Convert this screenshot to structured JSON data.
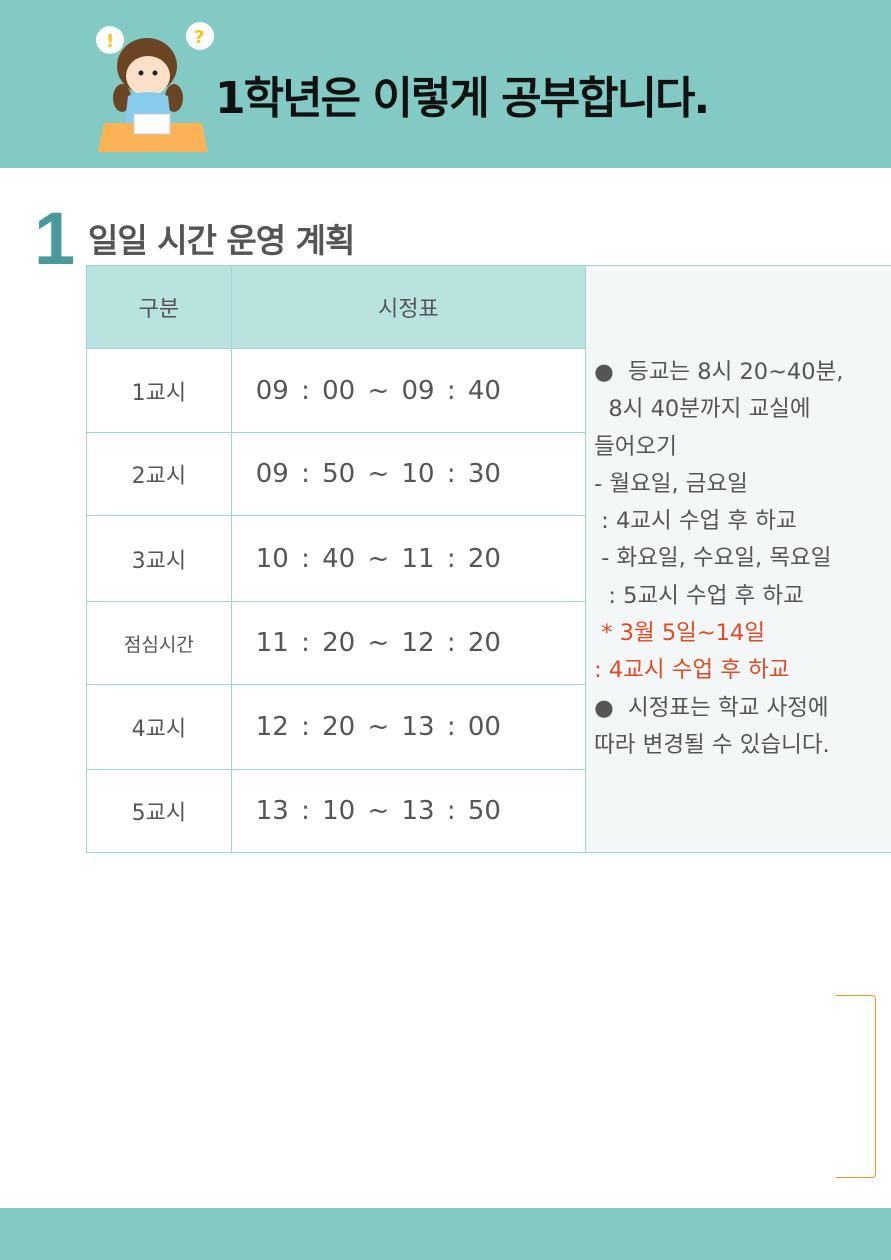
{
  "header": {
    "title": "1학년은 이렇게 공부합니다."
  },
  "section": {
    "number": "1",
    "title": "일일 시간 운영 계획"
  },
  "table": {
    "headers": [
      "구분",
      "시정표"
    ],
    "rows": [
      [
        "1교시",
        "09 : 00 ~ 09 : 40"
      ],
      [
        "2교시",
        "09 : 50 ~ 10 : 30"
      ],
      [
        "3교시",
        "10 : 40 ~  11 : 20"
      ],
      [
        "점심시간",
        "11 : 20 ~ 12 : 20"
      ],
      [
        "4교시",
        "12 : 20 ~  13 : 00"
      ],
      [
        "5교시",
        "13 : 10 ~  13 : 50"
      ]
    ],
    "notes": {
      "l1": "●  등교는 8시 20~40분,\n  8시 40분까지 교실에\n들어오기\n- 월요일, 금요일\n : 4교시 수업 후 하교\n - 화요일, 수요일, 목요일\n  : 5교시 수업 후 하교",
      "red": " * 3월 5일~14일\n: 4교시 수업 후 하교",
      "l2": "●  시정표는 학교 사정에\n따라 변경될 수 있습니다."
    }
  },
  "colors": {
    "teal": "#82cac3",
    "header_cell": "#b8e3df",
    "accent_red": "#e04a24",
    "bracket": "#e8962a"
  }
}
